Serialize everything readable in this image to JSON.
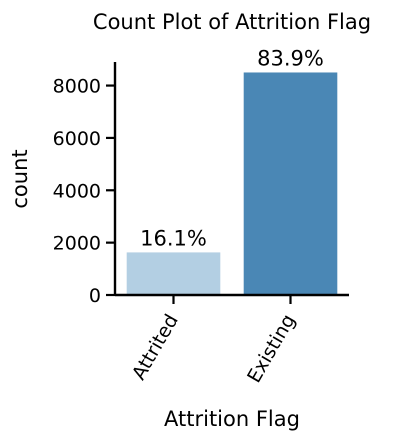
{
  "chart_data": {
    "type": "bar",
    "title": "Count Plot of Attrition Flag",
    "xlabel": "Attrition Flag",
    "ylabel": "count",
    "categories": [
      "Attrited",
      "Existing"
    ],
    "values": [
      1627,
      8500
    ],
    "bar_labels": [
      "16.1%",
      "83.9%"
    ],
    "colors": [
      "#b3cfe3",
      "#4a87b5"
    ],
    "ylim": [
      0,
      8900
    ],
    "yticks": [
      0,
      2000,
      4000,
      6000,
      8000
    ],
    "ytick_labels": [
      "0",
      "2000",
      "4000",
      "6000",
      "8000"
    ],
    "grid": false,
    "legend": "none"
  }
}
